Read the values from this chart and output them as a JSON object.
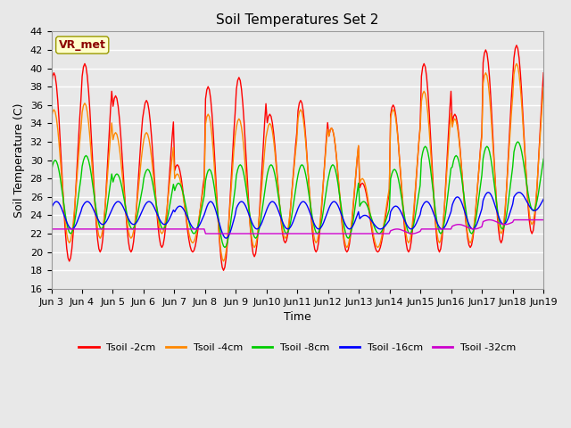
{
  "title": "Soil Temperatures Set 2",
  "xlabel": "Time",
  "ylabel": "Soil Temperature (C)",
  "ylim": [
    16,
    44
  ],
  "yticks": [
    16,
    18,
    20,
    22,
    24,
    26,
    28,
    30,
    32,
    34,
    36,
    38,
    40,
    42,
    44
  ],
  "background_color": "#e8e8e8",
  "grid_color": "#ffffff",
  "series_colors": [
    "#ff0000",
    "#ff8800",
    "#00cc00",
    "#0000ff",
    "#cc00cc"
  ],
  "series_labels": [
    "Tsoil -2cm",
    "Tsoil -4cm",
    "Tsoil -8cm",
    "Tsoil -16cm",
    "Tsoil -32cm"
  ],
  "vr_met_label": "VR_met",
  "n_days": 16,
  "start_day": 3,
  "points_per_day": 24,
  "day_peaks_2cm": [
    39.5,
    40.5,
    37.0,
    36.5,
    29.5,
    38.0,
    39.0,
    35.0,
    36.5,
    33.5,
    27.5,
    36.0,
    40.5,
    35.0,
    42.0,
    42.5
  ],
  "day_troughs_2cm": [
    19.0,
    20.0,
    20.0,
    20.5,
    20.0,
    18.0,
    19.5,
    21.0,
    20.0,
    20.0,
    20.0,
    20.0,
    20.0,
    20.5,
    21.0,
    22.0
  ],
  "day_peaks_4cm": [
    35.5,
    36.2,
    33.0,
    33.0,
    28.5,
    35.0,
    34.5,
    34.0,
    35.5,
    33.5,
    28.0,
    35.5,
    37.5,
    34.5,
    39.5,
    40.5
  ],
  "day_troughs_4cm": [
    21.0,
    21.5,
    21.5,
    22.0,
    21.0,
    19.0,
    20.5,
    21.5,
    21.0,
    20.5,
    20.5,
    21.0,
    21.0,
    21.0,
    22.0,
    23.0
  ],
  "day_peaks_8cm": [
    30.0,
    30.5,
    28.5,
    29.0,
    27.5,
    29.0,
    29.5,
    29.5,
    29.5,
    29.5,
    25.5,
    29.0,
    31.5,
    30.5,
    31.5,
    32.0
  ],
  "day_troughs_8cm": [
    22.0,
    22.5,
    22.5,
    22.5,
    22.0,
    20.5,
    21.5,
    22.0,
    22.0,
    21.5,
    22.0,
    22.0,
    22.0,
    22.0,
    22.5,
    24.5
  ],
  "day_peaks_16cm": [
    25.5,
    25.5,
    25.5,
    25.5,
    25.0,
    25.5,
    25.5,
    25.5,
    25.5,
    25.5,
    24.0,
    25.0,
    25.5,
    26.0,
    26.5,
    26.5
  ],
  "day_troughs_16cm": [
    22.5,
    23.0,
    23.0,
    23.0,
    22.5,
    21.5,
    22.5,
    22.5,
    22.5,
    22.5,
    22.5,
    22.5,
    22.5,
    22.5,
    23.0,
    24.5
  ],
  "day_peaks_32cm": [
    22.5,
    22.5,
    22.5,
    22.5,
    22.5,
    22.0,
    22.0,
    22.0,
    22.0,
    22.0,
    22.0,
    22.5,
    22.5,
    23.0,
    23.5,
    23.5
  ],
  "day_troughs_32cm": [
    22.5,
    22.5,
    22.5,
    22.5,
    22.5,
    22.0,
    22.0,
    22.0,
    22.0,
    22.0,
    22.0,
    22.0,
    22.5,
    22.5,
    23.0,
    23.5
  ]
}
